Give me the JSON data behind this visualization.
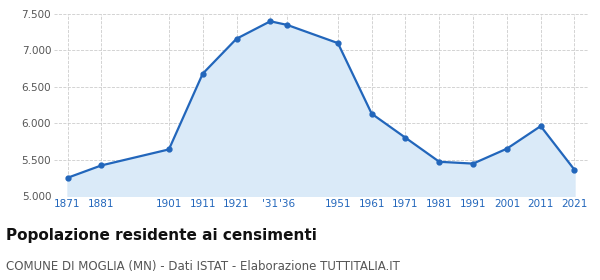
{
  "years": [
    1871,
    1881,
    1901,
    1911,
    1921,
    1931,
    1936,
    1951,
    1961,
    1971,
    1981,
    1991,
    2001,
    2011,
    2021
  ],
  "population": [
    5250,
    5420,
    5640,
    6680,
    7160,
    7400,
    7350,
    7100,
    6130,
    5800,
    5470,
    5445,
    5650,
    5960,
    5360
  ],
  "tick_labels": [
    "1871",
    "1881",
    "1901",
    "1911",
    "1921",
    "'31",
    "'36",
    "1951",
    "1961",
    "1971",
    "1981",
    "1991",
    "2001",
    "2011",
    "2021"
  ],
  "line_color": "#2266bb",
  "fill_color": "#daeaf8",
  "marker_color": "#2266bb",
  "background_color": "#ffffff",
  "grid_color": "#cccccc",
  "ylim": [
    5000,
    7500
  ],
  "yticks": [
    5000,
    5500,
    6000,
    6500,
    7000,
    7500
  ],
  "title": "Popolazione residente ai censimenti",
  "subtitle": "COMUNE DI MOGLIA (MN) - Dati ISTAT - Elaborazione TUTTITALIA.IT",
  "title_fontsize": 11,
  "subtitle_fontsize": 8.5
}
